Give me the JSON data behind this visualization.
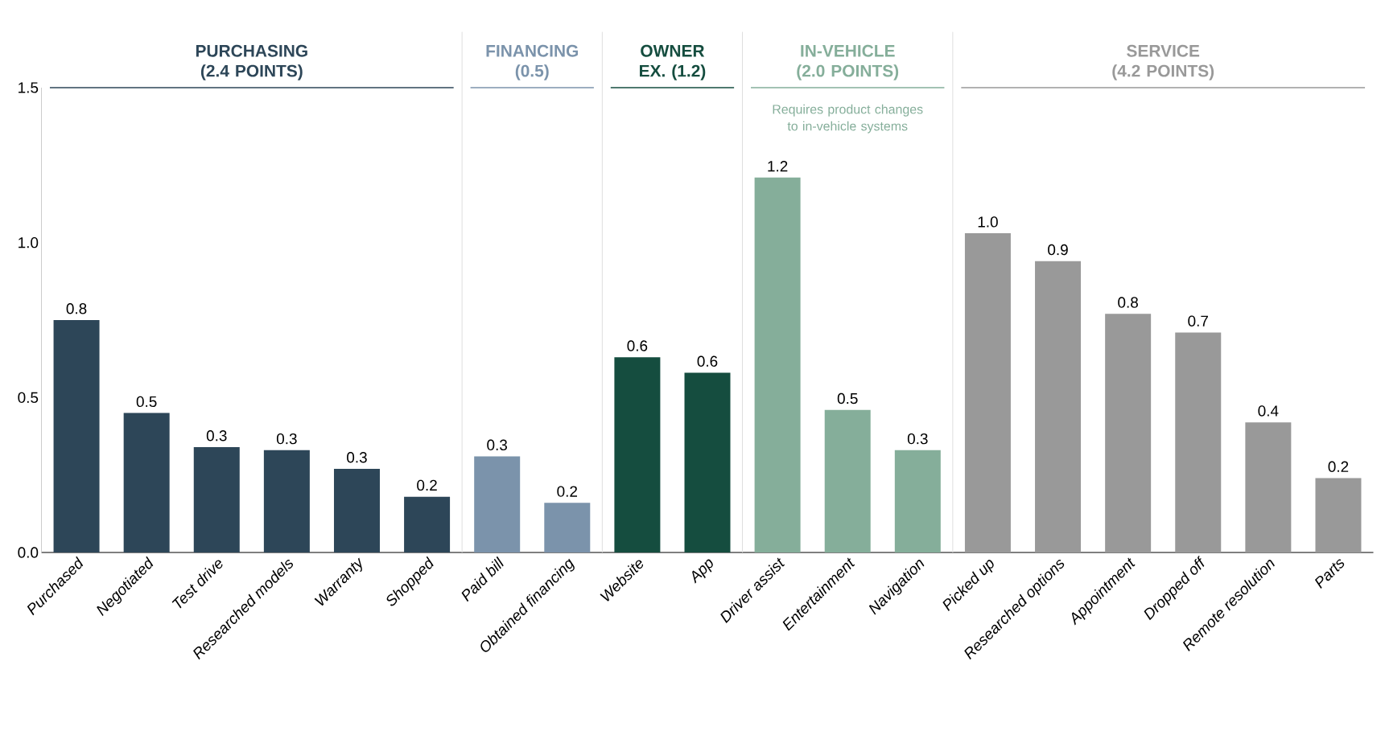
{
  "chart_data": {
    "type": "bar",
    "categories": [
      "Purchased",
      "Negotiated",
      "Test drive",
      "Researched models",
      "Warranty",
      "Shopped",
      "Paid bill",
      "Obtained financing",
      "Website",
      "App",
      "Driver assist",
      "Entertainment",
      "Navigation",
      "Picked up",
      "Researched options",
      "Appointment",
      "Dropped off",
      "Remote resolution",
      "Parts"
    ],
    "series": [
      {
        "name": "PURCHASING (2.4 POINTS)",
        "color": "#2d4658",
        "values": [
          0.75,
          0.45,
          0.34,
          0.33,
          0.27,
          0.18,
          null,
          null,
          null,
          null,
          null,
          null,
          null,
          null,
          null,
          null,
          null,
          null,
          null
        ],
        "value_labels": [
          "0.8",
          "0.5",
          "0.3",
          "0.3",
          "0.3",
          "0.2",
          null,
          null,
          null,
          null,
          null,
          null,
          null,
          null,
          null,
          null,
          null,
          null,
          null
        ]
      },
      {
        "name": "FINANCING (0.5)",
        "color": "#7b93ab",
        "values": [
          null,
          null,
          null,
          null,
          null,
          null,
          0.31,
          0.16,
          null,
          null,
          null,
          null,
          null,
          null,
          null,
          null,
          null,
          null,
          null
        ],
        "value_labels": [
          null,
          null,
          null,
          null,
          null,
          null,
          "0.3",
          "0.2",
          null,
          null,
          null,
          null,
          null,
          null,
          null,
          null,
          null,
          null,
          null
        ]
      },
      {
        "name": "OWNER EX. (1.2)",
        "color": "#154d3f",
        "values": [
          null,
          null,
          null,
          null,
          null,
          null,
          null,
          null,
          0.63,
          0.58,
          null,
          null,
          null,
          null,
          null,
          null,
          null,
          null,
          null
        ],
        "value_labels": [
          null,
          null,
          null,
          null,
          null,
          null,
          null,
          null,
          "0.6",
          "0.6",
          null,
          null,
          null,
          null,
          null,
          null,
          null,
          null,
          null
        ]
      },
      {
        "name": "IN-VEHICLE (2.0 POINTS)",
        "color": "#85ae9a",
        "values": [
          null,
          null,
          null,
          null,
          null,
          null,
          null,
          null,
          null,
          null,
          1.21,
          0.46,
          0.33,
          null,
          null,
          null,
          null,
          null,
          null
        ],
        "value_labels": [
          null,
          null,
          null,
          null,
          null,
          null,
          null,
          null,
          null,
          null,
          "1.2",
          "0.5",
          "0.3",
          null,
          null,
          null,
          null,
          null,
          null
        ]
      },
      {
        "name": "SERVICE (4.2 POINTS)",
        "color": "#999999",
        "values": [
          null,
          null,
          null,
          null,
          null,
          null,
          null,
          null,
          null,
          null,
          null,
          null,
          null,
          1.03,
          0.94,
          0.77,
          0.71,
          0.42,
          0.24
        ],
        "value_labels": [
          null,
          null,
          null,
          null,
          null,
          null,
          null,
          null,
          null,
          null,
          null,
          null,
          null,
          "1.0",
          "0.9",
          "0.8",
          "0.7",
          "0.4",
          "0.2"
        ]
      }
    ],
    "ylim": [
      0,
      1.5
    ],
    "yticks": [
      {
        "value": 0,
        "label": "0.0"
      },
      {
        "value": 0.5,
        "label": "0.5"
      },
      {
        "value": 1,
        "label": "1.0"
      },
      1.5
    ],
    "annotations": [
      "Requires product changes to in-vehicle systems"
    ]
  }
}
